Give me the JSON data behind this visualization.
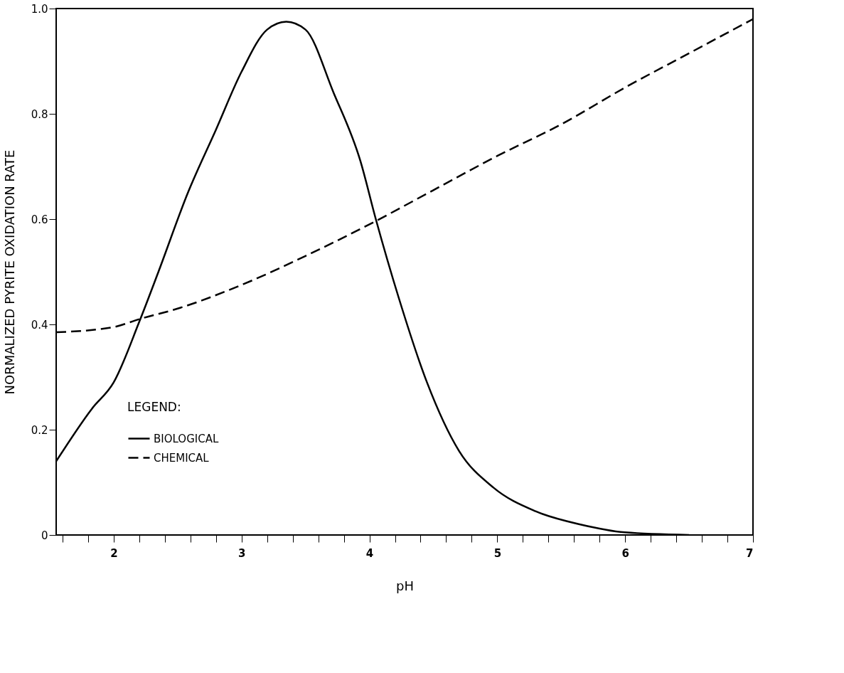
{
  "chart_data": {
    "type": "line",
    "xlabel": "pH",
    "ylabel": "NORMALIZED PYRITE OXIDATION RATE",
    "legend_title": "LEGEND:",
    "legend": "bottom left",
    "grid": false,
    "marker": "none",
    "xlim": [
      1.55,
      7
    ],
    "ylim": [
      0,
      1
    ],
    "xticks": [
      {
        "value": 1.6,
        "label": null
      },
      {
        "value": 1.8,
        "label": null
      },
      2,
      {
        "value": 2.2,
        "label": null
      },
      {
        "value": 2.4,
        "label": null
      },
      {
        "value": 2.6,
        "label": null
      },
      {
        "value": 2.8,
        "label": null
      },
      3,
      {
        "value": 3.2,
        "label": null
      },
      {
        "value": 3.4,
        "label": null
      },
      {
        "value": 3.6,
        "label": null
      },
      {
        "value": 3.8,
        "label": null
      },
      4,
      {
        "value": 4.2,
        "label": null
      },
      {
        "value": 4.4,
        "label": null
      },
      {
        "value": 4.6,
        "label": null
      },
      {
        "value": 4.8,
        "label": null
      },
      5,
      {
        "value": 5.2,
        "label": null
      },
      {
        "value": 5.4,
        "label": null
      },
      {
        "value": 5.6,
        "label": null
      },
      {
        "value": 5.8,
        "label": null
      },
      6,
      {
        "value": 6.2,
        "label": null
      },
      {
        "value": 6.4,
        "label": null
      },
      {
        "value": 6.6,
        "label": null
      },
      {
        "value": 6.8,
        "label": null
      },
      7
    ],
    "yticks": [
      0,
      0.2,
      0.4,
      0.6,
      0.8,
      {
        "value": 1,
        "label": "1.0"
      }
    ],
    "series": [
      {
        "name": "BIOLOGICAL",
        "color": "#000000",
        "line_style": "solid",
        "x": [
          1.55,
          1.83,
          2.0,
          2.2,
          2.35,
          2.58,
          2.8,
          3.0,
          3.2,
          3.35,
          3.5,
          3.72,
          3.93,
          4.05,
          4.23,
          4.45,
          4.7,
          4.97,
          5.3,
          5.65,
          6.0,
          6.5
        ],
        "values": [
          0.14,
          0.24,
          0.29,
          0.405,
          0.5,
          0.65,
          0.77,
          0.88,
          0.96,
          0.975,
          0.96,
          0.84,
          0.71,
          0.6,
          0.45,
          0.29,
          0.16,
          0.09,
          0.045,
          0.02,
          0.005,
          0
        ]
      },
      {
        "name": "CHEMICAL",
        "color": "#000000",
        "line_style": "dashed",
        "x": [
          1.55,
          2.0,
          2.2,
          2.5,
          3.0,
          3.5,
          4.0,
          4.5,
          5.0,
          5.5,
          6.0,
          6.5,
          7.0
        ],
        "values": [
          0.385,
          0.395,
          0.41,
          0.43,
          0.475,
          0.53,
          0.59,
          0.655,
          0.72,
          0.78,
          0.85,
          0.915,
          0.98
        ]
      }
    ]
  }
}
